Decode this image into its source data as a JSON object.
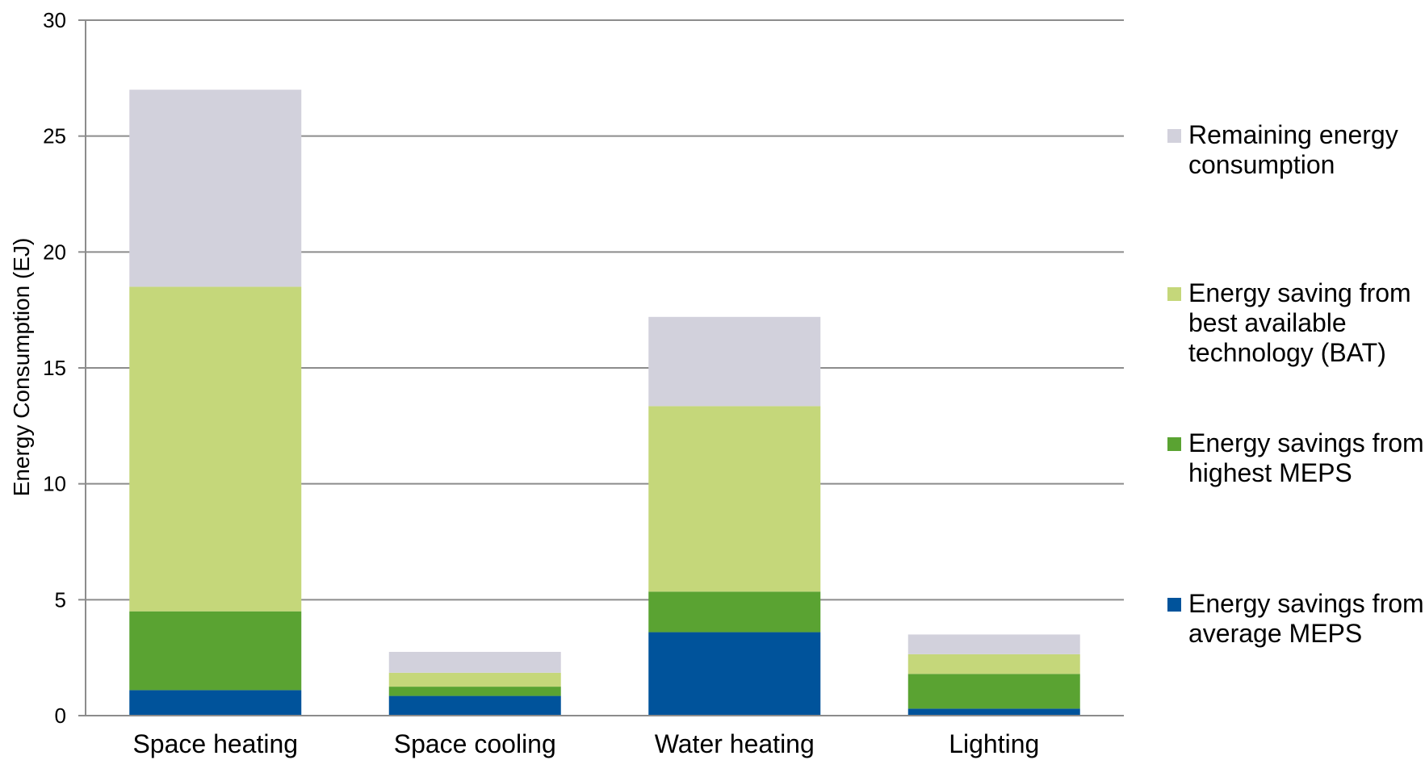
{
  "chart_data": {
    "type": "bar",
    "stacked": true,
    "title": "",
    "xlabel": "",
    "ylabel": "Energy Consumption (EJ)",
    "ylim": [
      0,
      30
    ],
    "yticks": [
      0,
      5,
      10,
      15,
      20,
      25,
      30
    ],
    "grid": true,
    "legend_position": "right",
    "categories": [
      "Space heating",
      "Space cooling",
      "Water heating",
      "Lighting"
    ],
    "series": [
      {
        "name": "Energy savings from average MEPS",
        "color": "#00539b",
        "values": [
          1.1,
          0.85,
          3.6,
          0.3
        ]
      },
      {
        "name": "Energy savings from highest MEPS",
        "color": "#5aa332",
        "values": [
          3.4,
          0.4,
          1.75,
          1.5
        ]
      },
      {
        "name": "Energy saving from best available technology (BAT)",
        "color": "#c5d77a",
        "values": [
          14.0,
          0.6,
          8.0,
          0.85
        ]
      },
      {
        "name": "Remaining energy consumption",
        "color": "#d2d1dc",
        "values": [
          8.5,
          0.9,
          3.85,
          0.85
        ]
      }
    ],
    "legend_order": [
      3,
      2,
      1,
      0
    ],
    "legend_lines": [
      [
        "Remaining energy",
        "consumption"
      ],
      [
        "Energy saving from",
        "best available",
        "technology (BAT)"
      ],
      [
        "Energy savings from",
        "highest MEPS"
      ],
      [
        "Energy savings from",
        "average MEPS"
      ]
    ]
  }
}
